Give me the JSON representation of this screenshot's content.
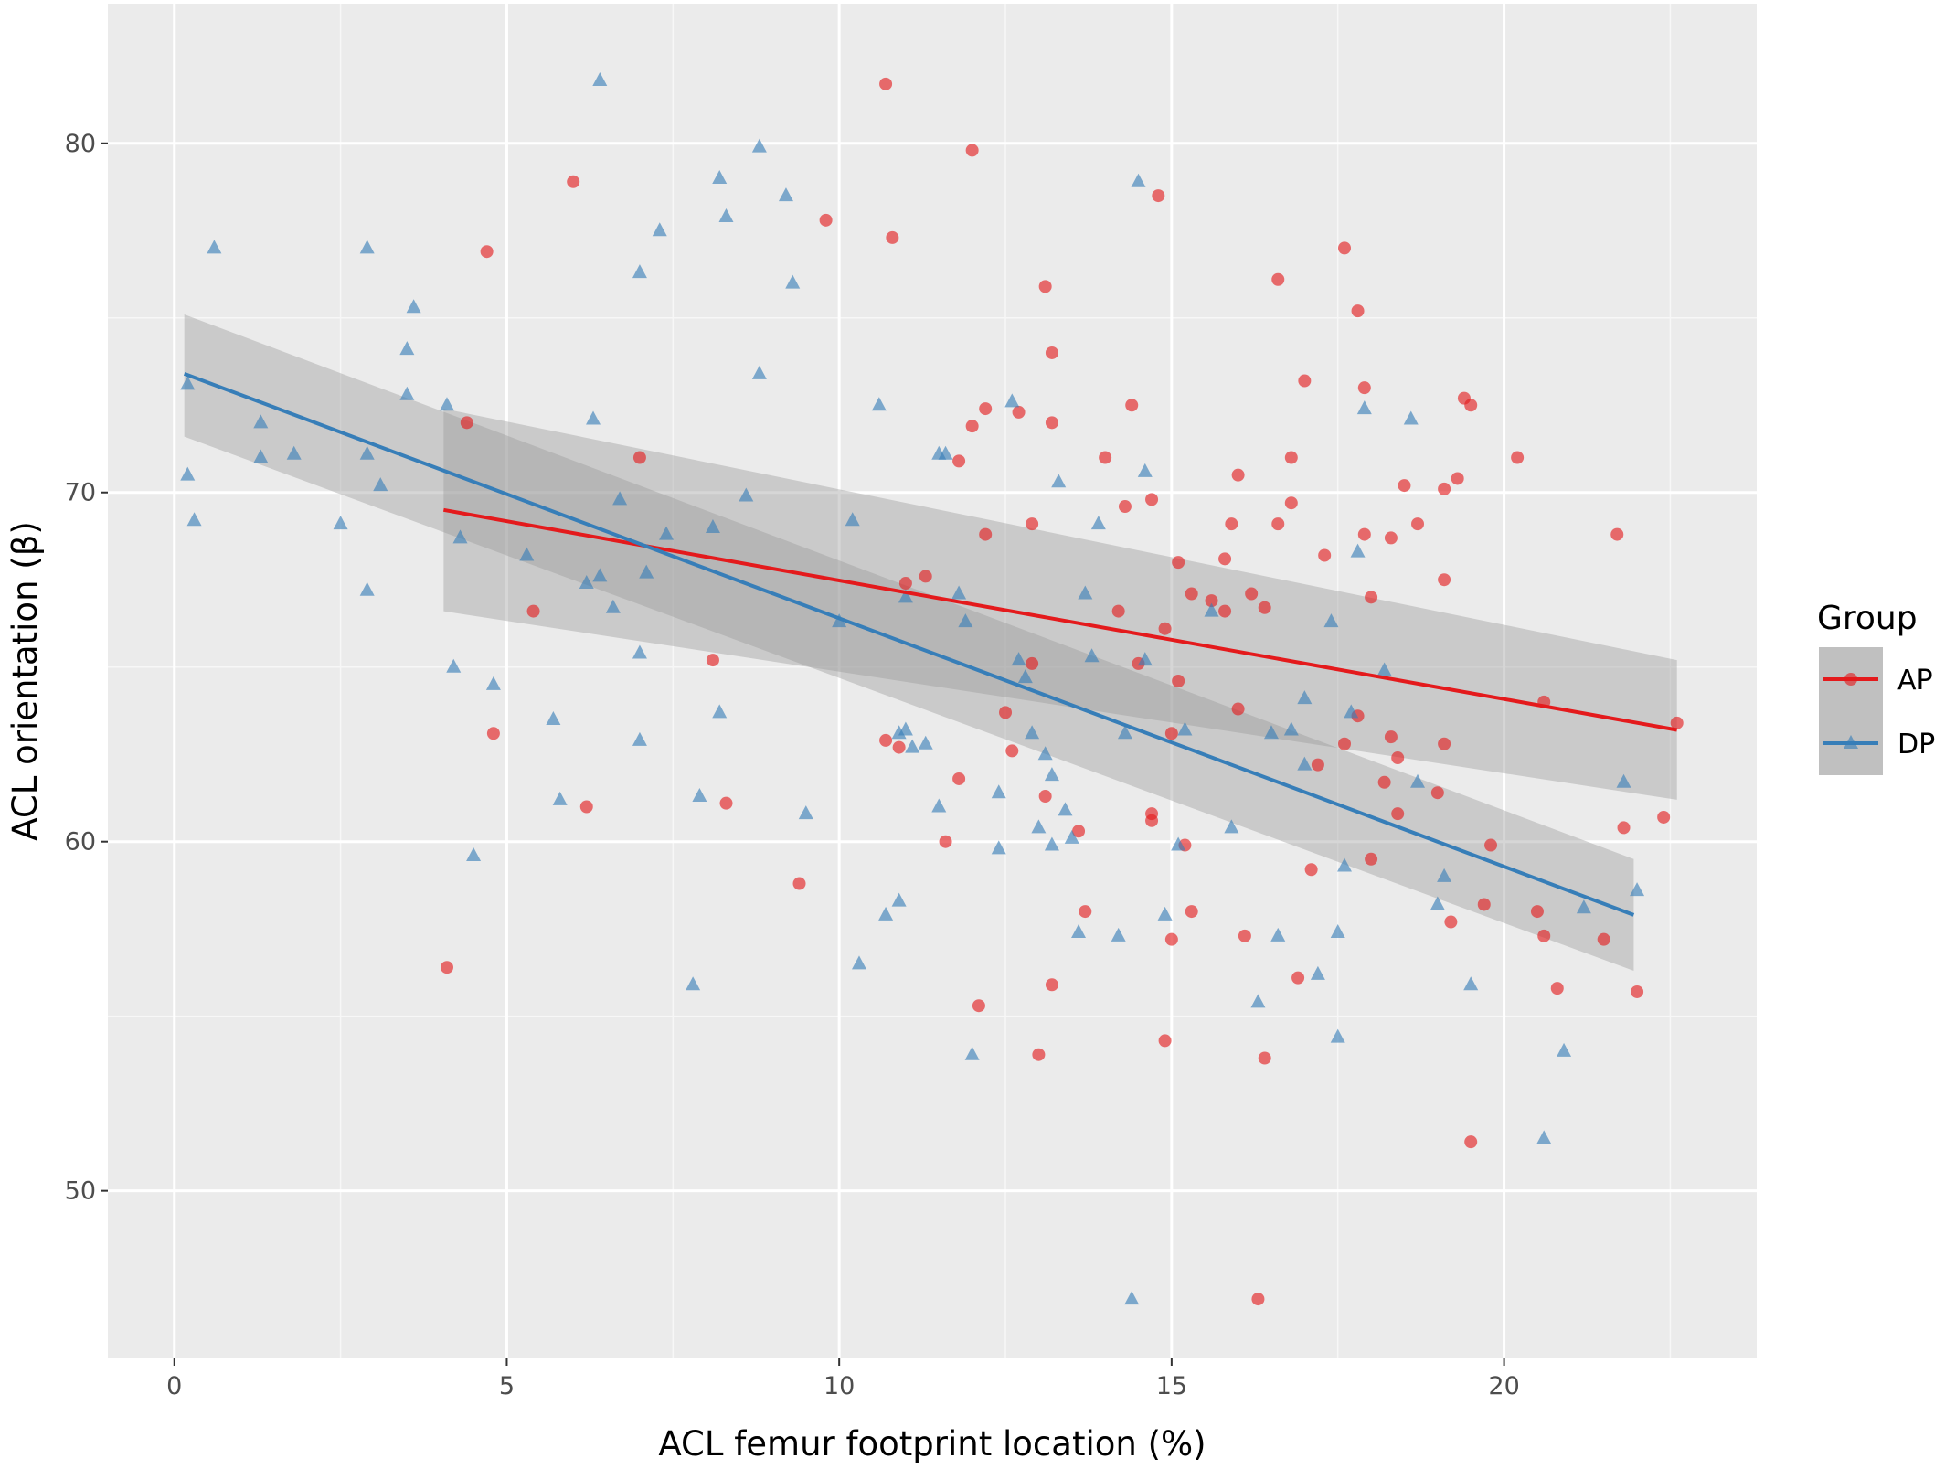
{
  "chart_data": {
    "type": "scatter",
    "xlabel": "ACL femur footprint location (%)",
    "ylabel": "ACL orientation (β)",
    "xlim": [
      -1.0,
      23.8
    ],
    "ylim": [
      45.2,
      84.0
    ],
    "x_ticks": [
      0,
      5,
      10,
      15,
      20
    ],
    "y_ticks": [
      50,
      60,
      70,
      80
    ],
    "grid": true,
    "legend": {
      "title": "Group",
      "position": "right",
      "entries": [
        "AP",
        "DP"
      ]
    },
    "series": [
      {
        "name": "AP",
        "color": "#e41a1c",
        "marker": "circle",
        "points": [
          [
            4.1,
            56.4
          ],
          [
            4.4,
            72.0
          ],
          [
            4.7,
            76.9
          ],
          [
            4.8,
            63.1
          ],
          [
            5.4,
            66.6
          ],
          [
            6.0,
            78.9
          ],
          [
            6.2,
            61.0
          ],
          [
            7.0,
            71.0
          ],
          [
            8.1,
            65.2
          ],
          [
            8.3,
            61.1
          ],
          [
            9.4,
            58.8
          ],
          [
            9.8,
            77.8
          ],
          [
            10.7,
            62.9
          ],
          [
            10.7,
            81.7
          ],
          [
            10.8,
            77.3
          ],
          [
            10.9,
            62.7
          ],
          [
            11.0,
            67.4
          ],
          [
            11.3,
            67.6
          ],
          [
            11.6,
            60.0
          ],
          [
            11.8,
            70.9
          ],
          [
            11.8,
            61.8
          ],
          [
            12.0,
            79.8
          ],
          [
            12.0,
            71.9
          ],
          [
            12.1,
            55.3
          ],
          [
            12.2,
            72.4
          ],
          [
            12.2,
            68.8
          ],
          [
            12.5,
            63.7
          ],
          [
            12.6,
            62.6
          ],
          [
            12.7,
            72.3
          ],
          [
            12.9,
            65.1
          ],
          [
            12.9,
            69.1
          ],
          [
            13.0,
            53.9
          ],
          [
            13.1,
            61.3
          ],
          [
            13.1,
            75.9
          ],
          [
            13.2,
            74.0
          ],
          [
            13.2,
            72.0
          ],
          [
            13.2,
            55.9
          ],
          [
            13.6,
            60.3
          ],
          [
            13.7,
            58.0
          ],
          [
            14.0,
            71.0
          ],
          [
            14.2,
            66.6
          ],
          [
            14.3,
            69.6
          ],
          [
            14.4,
            72.5
          ],
          [
            14.5,
            65.1
          ],
          [
            14.7,
            69.8
          ],
          [
            14.7,
            60.8
          ],
          [
            14.7,
            60.6
          ],
          [
            14.8,
            78.5
          ],
          [
            14.9,
            54.3
          ],
          [
            14.9,
            66.1
          ],
          [
            15.0,
            63.1
          ],
          [
            15.0,
            57.2
          ],
          [
            15.1,
            68.0
          ],
          [
            15.1,
            64.6
          ],
          [
            15.2,
            59.9
          ],
          [
            15.3,
            67.1
          ],
          [
            15.3,
            58.0
          ],
          [
            15.6,
            66.9
          ],
          [
            15.8,
            68.1
          ],
          [
            15.8,
            66.6
          ],
          [
            15.9,
            69.1
          ],
          [
            16.0,
            70.5
          ],
          [
            16.0,
            63.8
          ],
          [
            16.1,
            57.3
          ],
          [
            16.2,
            67.1
          ],
          [
            16.3,
            46.9
          ],
          [
            16.4,
            66.7
          ],
          [
            16.4,
            53.8
          ],
          [
            16.6,
            69.1
          ],
          [
            16.6,
            76.1
          ],
          [
            16.8,
            69.7
          ],
          [
            16.8,
            71.0
          ],
          [
            16.9,
            56.1
          ],
          [
            17.0,
            73.2
          ],
          [
            17.1,
            59.2
          ],
          [
            17.2,
            62.2
          ],
          [
            17.3,
            68.2
          ],
          [
            17.6,
            77.0
          ],
          [
            17.6,
            62.8
          ],
          [
            17.8,
            75.2
          ],
          [
            17.8,
            63.6
          ],
          [
            17.9,
            73.0
          ],
          [
            17.9,
            68.8
          ],
          [
            18.0,
            67.0
          ],
          [
            18.0,
            59.5
          ],
          [
            18.2,
            61.7
          ],
          [
            18.3,
            63.0
          ],
          [
            18.3,
            68.7
          ],
          [
            18.4,
            62.4
          ],
          [
            18.4,
            60.8
          ],
          [
            18.5,
            70.2
          ],
          [
            18.7,
            69.1
          ],
          [
            19.0,
            61.4
          ],
          [
            19.1,
            67.5
          ],
          [
            19.1,
            62.8
          ],
          [
            19.1,
            70.1
          ],
          [
            19.2,
            57.7
          ],
          [
            19.3,
            70.4
          ],
          [
            19.4,
            72.7
          ],
          [
            19.5,
            51.4
          ],
          [
            19.5,
            72.5
          ],
          [
            19.7,
            58.2
          ],
          [
            19.8,
            59.9
          ],
          [
            20.2,
            71.0
          ],
          [
            20.5,
            58.0
          ],
          [
            20.6,
            64.0
          ],
          [
            20.6,
            57.3
          ],
          [
            20.8,
            55.8
          ],
          [
            21.5,
            57.2
          ],
          [
            21.7,
            68.8
          ],
          [
            21.8,
            60.4
          ],
          [
            22.0,
            55.7
          ],
          [
            22.4,
            60.7
          ],
          [
            22.6,
            63.4
          ]
        ],
        "fit": {
          "x": [
            4.05,
            22.6
          ],
          "y": [
            69.5,
            63.2
          ],
          "ci_low": [
            66.6,
            61.2
          ],
          "ci_high": [
            72.4,
            65.2
          ]
        }
      },
      {
        "name": "DP",
        "color": "#377eb8",
        "marker": "triangle",
        "points": [
          [
            0.2,
            73.1
          ],
          [
            0.2,
            70.5
          ],
          [
            0.3,
            69.2
          ],
          [
            0.6,
            77.0
          ],
          [
            1.3,
            72.0
          ],
          [
            1.3,
            71.0
          ],
          [
            1.8,
            71.1
          ],
          [
            2.5,
            69.1
          ],
          [
            2.9,
            77.0
          ],
          [
            2.9,
            71.1
          ],
          [
            2.9,
            67.2
          ],
          [
            3.1,
            70.2
          ],
          [
            3.5,
            72.8
          ],
          [
            3.5,
            74.1
          ],
          [
            3.6,
            75.3
          ],
          [
            4.1,
            72.5
          ],
          [
            4.2,
            65.0
          ],
          [
            4.3,
            68.7
          ],
          [
            4.5,
            59.6
          ],
          [
            4.8,
            64.5
          ],
          [
            5.3,
            68.2
          ],
          [
            5.7,
            63.5
          ],
          [
            5.8,
            61.2
          ],
          [
            6.2,
            67.4
          ],
          [
            6.3,
            72.1
          ],
          [
            6.4,
            67.6
          ],
          [
            6.4,
            81.8
          ],
          [
            6.6,
            66.7
          ],
          [
            6.7,
            69.8
          ],
          [
            7.0,
            76.3
          ],
          [
            7.0,
            65.4
          ],
          [
            7.0,
            62.9
          ],
          [
            7.1,
            67.7
          ],
          [
            7.3,
            77.5
          ],
          [
            7.4,
            68.8
          ],
          [
            7.8,
            55.9
          ],
          [
            7.9,
            61.3
          ],
          [
            8.1,
            69.0
          ],
          [
            8.2,
            79.0
          ],
          [
            8.3,
            77.9
          ],
          [
            8.2,
            63.7
          ],
          [
            8.6,
            69.9
          ],
          [
            8.8,
            73.4
          ],
          [
            8.8,
            79.9
          ],
          [
            9.2,
            78.5
          ],
          [
            9.3,
            76.0
          ],
          [
            9.5,
            60.8
          ],
          [
            10.0,
            66.3
          ],
          [
            10.2,
            69.2
          ],
          [
            10.3,
            56.5
          ],
          [
            10.6,
            72.5
          ],
          [
            10.7,
            57.9
          ],
          [
            10.9,
            63.1
          ],
          [
            10.9,
            58.3
          ],
          [
            11.0,
            63.2
          ],
          [
            11.0,
            67.0
          ],
          [
            11.1,
            62.7
          ],
          [
            11.3,
            62.8
          ],
          [
            11.5,
            71.1
          ],
          [
            11.5,
            61.0
          ],
          [
            11.6,
            71.1
          ],
          [
            11.8,
            67.1
          ],
          [
            11.9,
            66.3
          ],
          [
            12.0,
            53.9
          ],
          [
            12.4,
            59.8
          ],
          [
            12.4,
            61.4
          ],
          [
            12.6,
            72.6
          ],
          [
            12.7,
            65.2
          ],
          [
            12.8,
            64.7
          ],
          [
            12.9,
            63.1
          ],
          [
            13.0,
            60.4
          ],
          [
            13.1,
            62.5
          ],
          [
            13.2,
            61.9
          ],
          [
            13.2,
            59.9
          ],
          [
            13.3,
            70.3
          ],
          [
            13.4,
            60.9
          ],
          [
            13.5,
            60.1
          ],
          [
            13.6,
            57.4
          ],
          [
            13.7,
            67.1
          ],
          [
            13.8,
            65.3
          ],
          [
            13.9,
            69.1
          ],
          [
            14.2,
            57.3
          ],
          [
            14.3,
            63.1
          ],
          [
            14.4,
            46.9
          ],
          [
            14.5,
            78.9
          ],
          [
            14.6,
            70.6
          ],
          [
            14.6,
            65.2
          ],
          [
            14.9,
            57.9
          ],
          [
            15.1,
            59.9
          ],
          [
            15.2,
            63.2
          ],
          [
            15.6,
            66.6
          ],
          [
            15.9,
            60.4
          ],
          [
            16.3,
            55.4
          ],
          [
            16.5,
            63.1
          ],
          [
            16.6,
            57.3
          ],
          [
            16.8,
            63.2
          ],
          [
            17.0,
            64.1
          ],
          [
            17.0,
            62.2
          ],
          [
            17.2,
            56.2
          ],
          [
            17.4,
            66.3
          ],
          [
            17.5,
            57.4
          ],
          [
            17.5,
            54.4
          ],
          [
            17.6,
            59.3
          ],
          [
            17.7,
            63.7
          ],
          [
            17.8,
            68.3
          ],
          [
            17.9,
            72.4
          ],
          [
            18.2,
            64.9
          ],
          [
            18.6,
            72.1
          ],
          [
            18.7,
            61.7
          ],
          [
            19.0,
            58.2
          ],
          [
            19.1,
            59.0
          ],
          [
            19.5,
            55.9
          ],
          [
            20.6,
            51.5
          ],
          [
            20.9,
            54.0
          ],
          [
            21.2,
            58.1
          ],
          [
            21.8,
            61.7
          ],
          [
            22.0,
            58.6
          ]
        ],
        "fit": {
          "x": [
            0.15,
            21.95
          ],
          "y": [
            73.4,
            57.9
          ],
          "ci_low": [
            71.6,
            56.3
          ],
          "ci_high": [
            75.1,
            59.5
          ]
        }
      }
    ]
  }
}
